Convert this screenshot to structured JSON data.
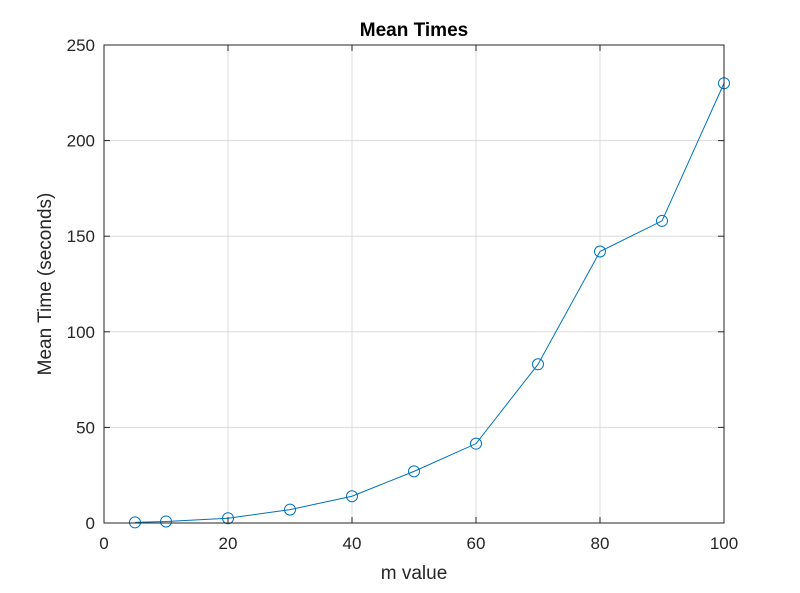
{
  "chart_data": {
    "type": "line",
    "title": "Mean Times",
    "xlabel": "m value",
    "ylabel": "Mean Time (seconds)",
    "xlim": [
      0,
      100
    ],
    "ylim": [
      0,
      250
    ],
    "xticks": [
      0,
      20,
      40,
      60,
      80,
      100
    ],
    "yticks": [
      0,
      50,
      100,
      150,
      200,
      250
    ],
    "grid": true,
    "marker": "circle",
    "series": [
      {
        "color": "#0072BD",
        "x": [
          5,
          10,
          20,
          30,
          40,
          50,
          60,
          70,
          80,
          90,
          100
        ],
        "y": [
          0.3,
          0.8,
          2.5,
          7,
          14,
          27,
          41.5,
          83,
          142,
          158,
          230
        ]
      }
    ]
  }
}
